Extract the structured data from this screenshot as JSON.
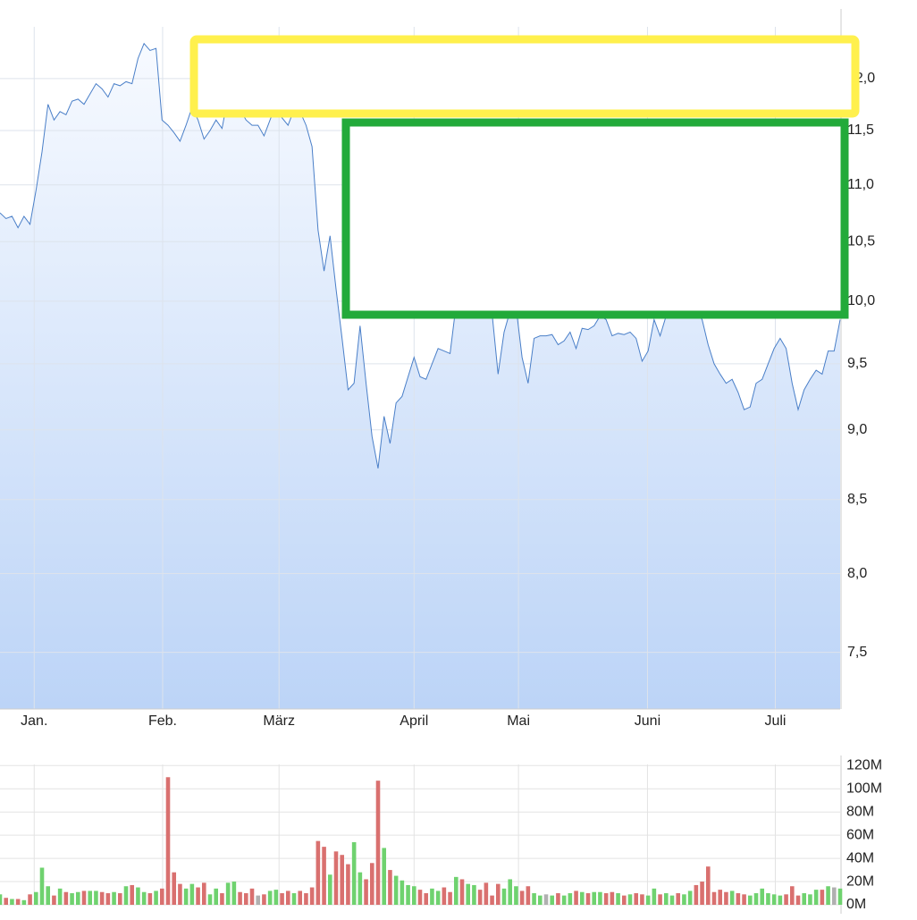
{
  "chart_data": [
    {
      "type": "area",
      "log": true,
      "grid": true,
      "color": "#4a7fc8",
      "fill_colors": [
        "#f7faff",
        "#bcd4f7"
      ],
      "xlim": [
        0,
        140
      ],
      "ylim": [
        7.16,
        12.52
      ],
      "xticks": [
        {
          "value": 5.7,
          "label": "Jan."
        },
        {
          "value": 27.1,
          "label": "Feb."
        },
        {
          "value": 46.5,
          "label": "März"
        },
        {
          "value": 69,
          "label": "April"
        },
        {
          "value": 86.4,
          "label": "Mai"
        },
        {
          "value": 107.9,
          "label": "Juni"
        },
        {
          "value": 129.2,
          "label": "Juli"
        }
      ],
      "yticks": [
        {
          "value": 7.5,
          "label": "7,5"
        },
        {
          "value": 8,
          "label": "8,0"
        },
        {
          "value": 8.5,
          "label": "8,5"
        },
        {
          "value": 9,
          "label": "9,0"
        },
        {
          "value": 9.5,
          "label": "9,5"
        },
        {
          "value": 10,
          "label": "10,0"
        },
        {
          "value": 10.5,
          "label": "10,5"
        },
        {
          "value": 11,
          "label": "11,0"
        },
        {
          "value": 11.5,
          "label": "11,5"
        },
        {
          "value": 12,
          "label": "12,0"
        }
      ],
      "values": [
        10.75,
        10.7,
        10.72,
        10.62,
        10.72,
        10.65,
        10.95,
        11.3,
        11.75,
        11.6,
        11.68,
        11.65,
        11.78,
        11.8,
        11.75,
        11.85,
        11.95,
        11.9,
        11.82,
        11.95,
        11.93,
        11.97,
        11.95,
        12.2,
        12.35,
        12.28,
        12.3,
        11.6,
        11.55,
        11.48,
        11.4,
        11.55,
        11.72,
        11.6,
        11.42,
        11.5,
        11.6,
        11.52,
        11.82,
        11.88,
        11.7,
        11.6,
        11.55,
        11.55,
        11.45,
        11.6,
        11.75,
        11.62,
        11.55,
        11.7,
        11.68,
        11.55,
        11.35,
        10.6,
        10.25,
        10.55,
        10.1,
        9.7,
        9.3,
        9.35,
        9.8,
        9.35,
        8.95,
        8.72,
        9.1,
        8.9,
        9.2,
        9.25,
        9.4,
        9.55,
        9.4,
        9.38,
        9.5,
        9.62,
        9.6,
        9.58,
        9.97,
        9.92,
        10.0,
        10.08,
        9.98,
        9.95,
        9.9,
        9.42,
        9.75,
        9.92,
        9.95,
        9.55,
        9.35,
        9.7,
        9.72,
        9.72,
        9.73,
        9.65,
        9.68,
        9.75,
        9.62,
        9.78,
        9.77,
        9.8,
        9.88,
        9.85,
        9.72,
        9.74,
        9.73,
        9.75,
        9.7,
        9.52,
        9.6,
        9.85,
        9.72,
        9.88,
        9.95,
        9.9,
        9.95,
        9.98,
        9.92,
        9.85,
        9.65,
        9.5,
        9.42,
        9.35,
        9.38,
        9.28,
        9.15,
        9.17,
        9.35,
        9.38,
        9.5,
        9.62,
        9.7,
        9.62,
        9.35,
        9.15,
        9.3,
        9.38,
        9.45,
        9.42,
        9.6,
        9.6,
        9.85
      ]
    },
    {
      "type": "volume",
      "grid": true,
      "up_color": "#6fd26f",
      "down_color": "#d9706f",
      "flat_color": "#b0b0b0",
      "xlim": [
        0,
        140
      ],
      "ylim": [
        0,
        121
      ],
      "yticks": [
        {
          "value": 0,
          "label": "0M"
        },
        {
          "value": 20,
          "label": "20M"
        },
        {
          "value": 40,
          "label": "40M"
        },
        {
          "value": 60,
          "label": "60M"
        },
        {
          "value": 80,
          "label": "80M"
        },
        {
          "value": 100,
          "label": "100M"
        },
        {
          "value": 120,
          "label": "120M"
        }
      ],
      "values": [
        9,
        6,
        5,
        5,
        4,
        9,
        11,
        32,
        16,
        8,
        14,
        11,
        10,
        11,
        12,
        12,
        12,
        11,
        10,
        11,
        10,
        16,
        17,
        15,
        11,
        10,
        12,
        14,
        110,
        28,
        18,
        14,
        18,
        15,
        19,
        9,
        14,
        10,
        19,
        20,
        11,
        10,
        14,
        8,
        9,
        12,
        13,
        10,
        12,
        10,
        12,
        10,
        15,
        55,
        50,
        26,
        46,
        43,
        35,
        54,
        28,
        22,
        36,
        107,
        49,
        30,
        25,
        21,
        17,
        16,
        13,
        10,
        14,
        12,
        15,
        11,
        24,
        22,
        18,
        17,
        13,
        19,
        8,
        18,
        14,
        22,
        16,
        12,
        16,
        10,
        8,
        9,
        8,
        10,
        8,
        10,
        12,
        11,
        10,
        11,
        11,
        10,
        11,
        10,
        8,
        9,
        10,
        9,
        8,
        14,
        9,
        10,
        8,
        10,
        9,
        12,
        17,
        20,
        33,
        11,
        13,
        11,
        12,
        10,
        9,
        8,
        10,
        14,
        10,
        9,
        8,
        9,
        16,
        8,
        10,
        9,
        13,
        13,
        16,
        15,
        14
      ]
    }
  ]
}
